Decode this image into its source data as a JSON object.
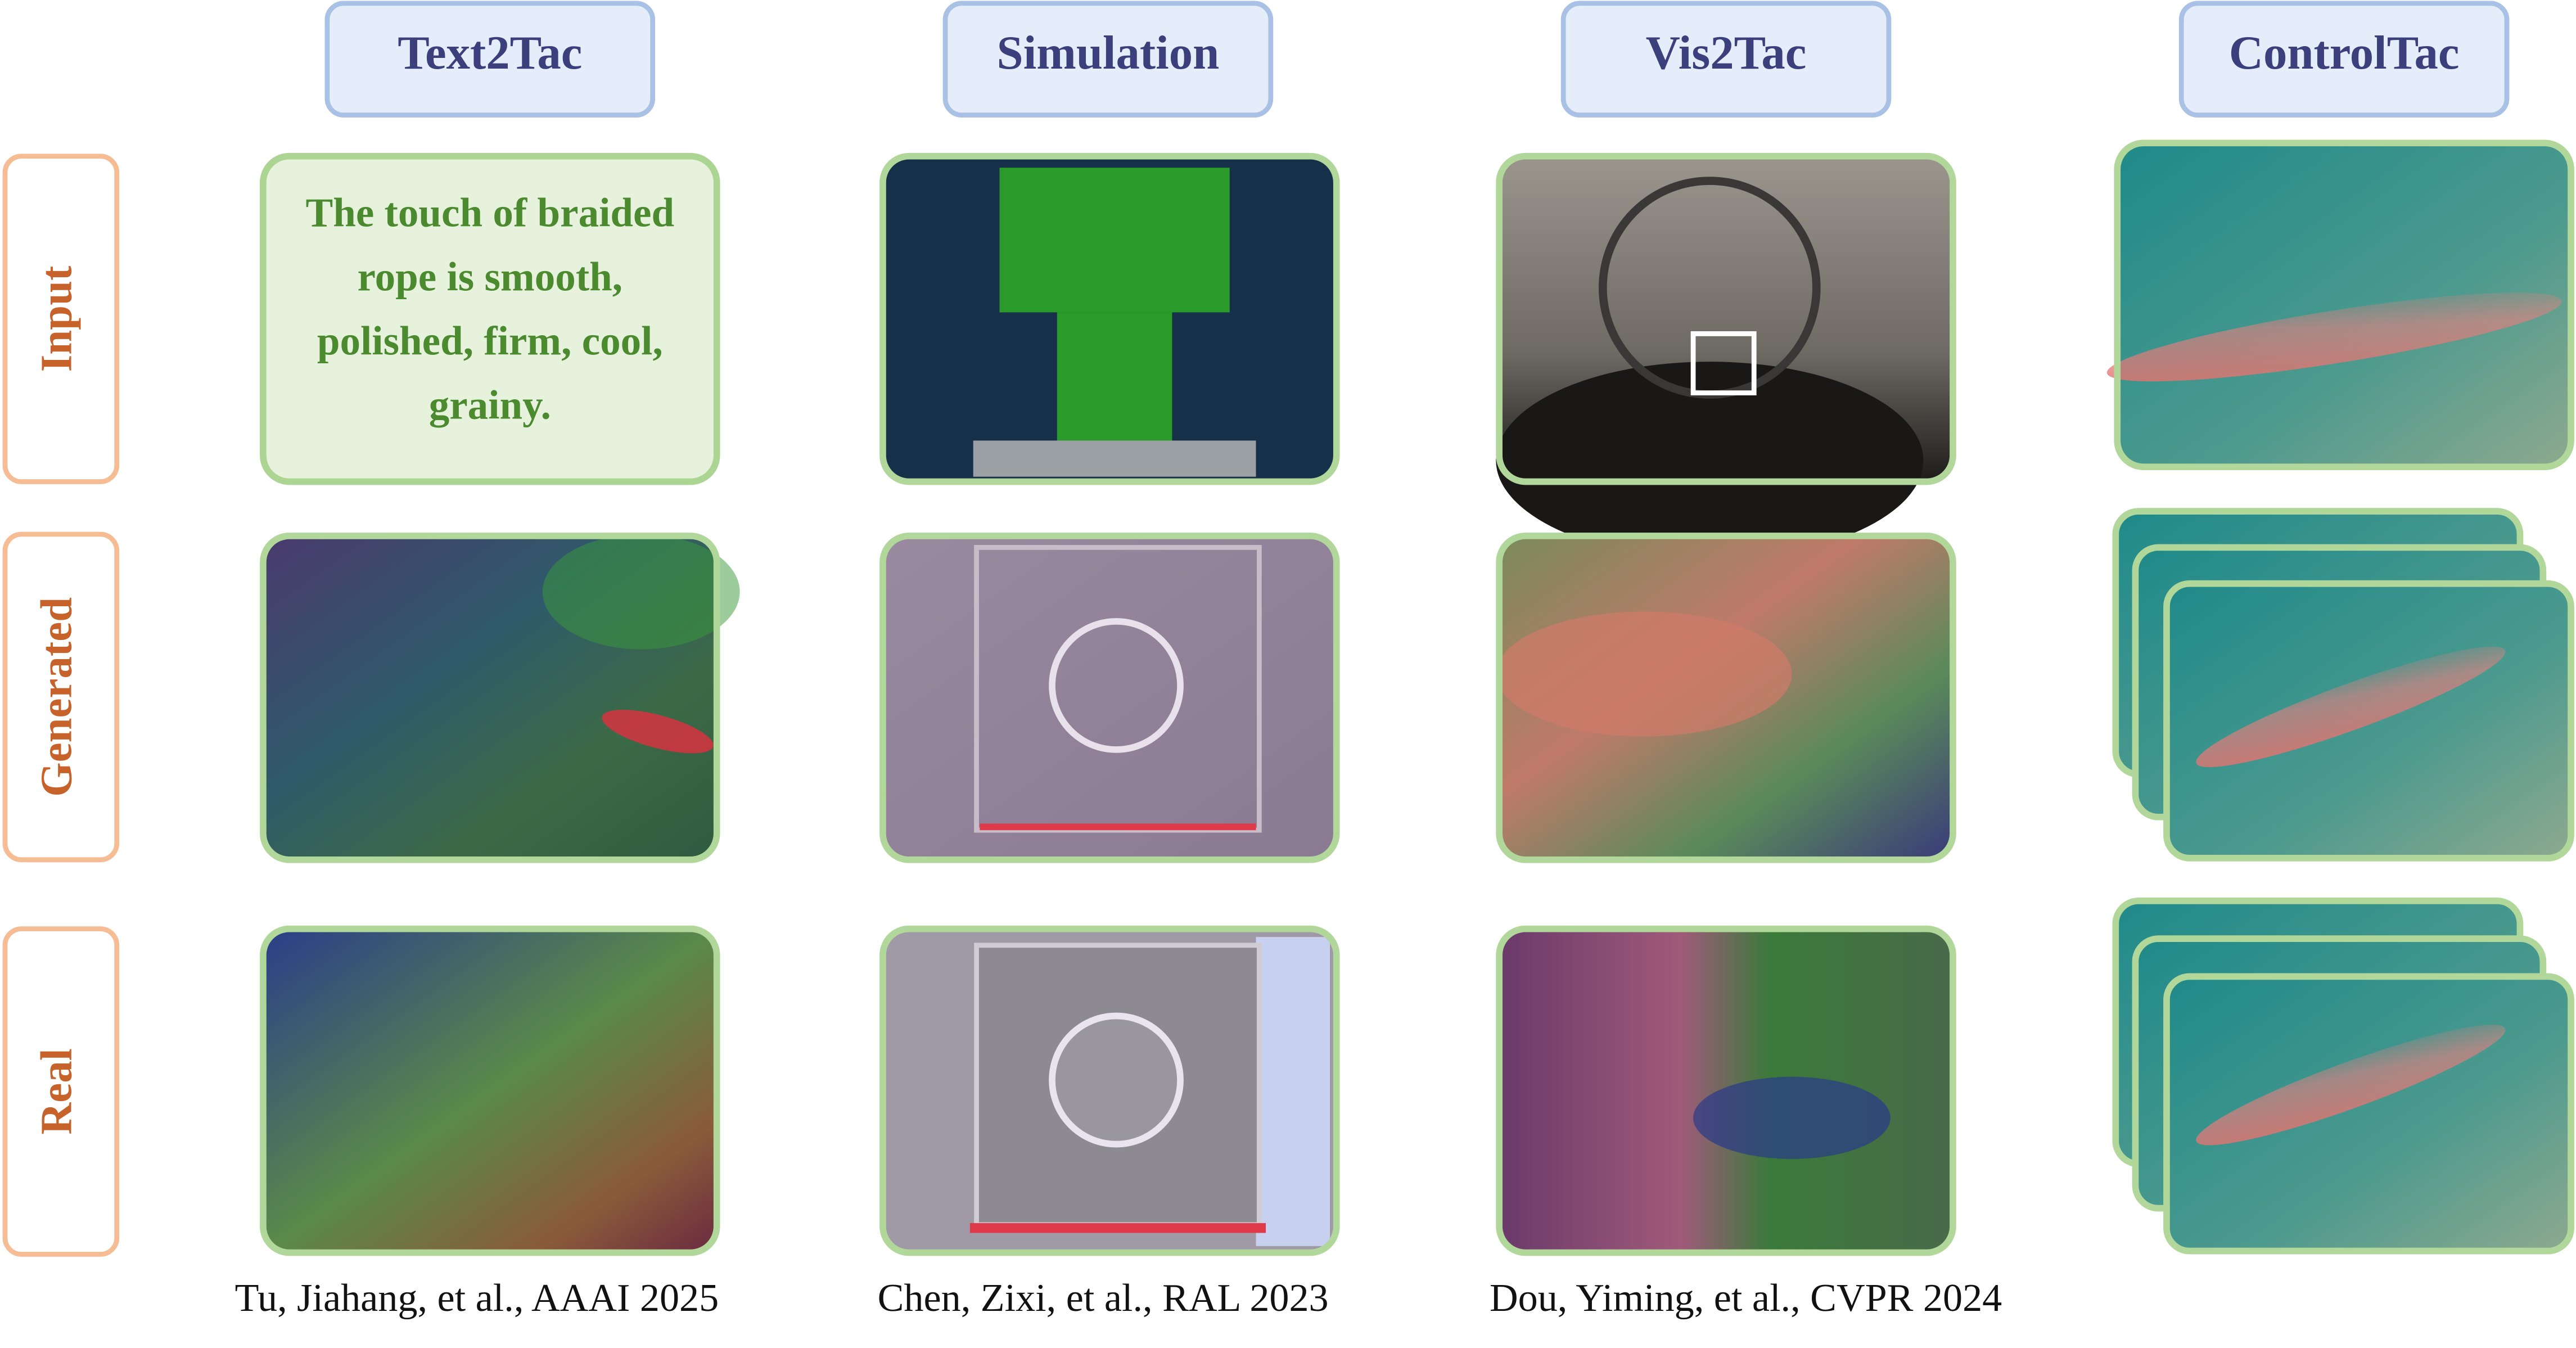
{
  "columns": [
    "Text2Tac",
    "Simulation",
    "Vis2Tac",
    "ControlTac"
  ],
  "rows": [
    "Input",
    "Generated",
    "Real"
  ],
  "text_input": {
    "lines": [
      "The touch of braided",
      "rope is smooth,",
      "polished, firm, cool,",
      "grainy."
    ]
  },
  "citations": [
    "Tu, Jiahang, et al., AAAI 2025",
    "Chen, Zixi, et al., RAL 2023",
    "Dou, Yiming, et al., CVPR 2024"
  ]
}
